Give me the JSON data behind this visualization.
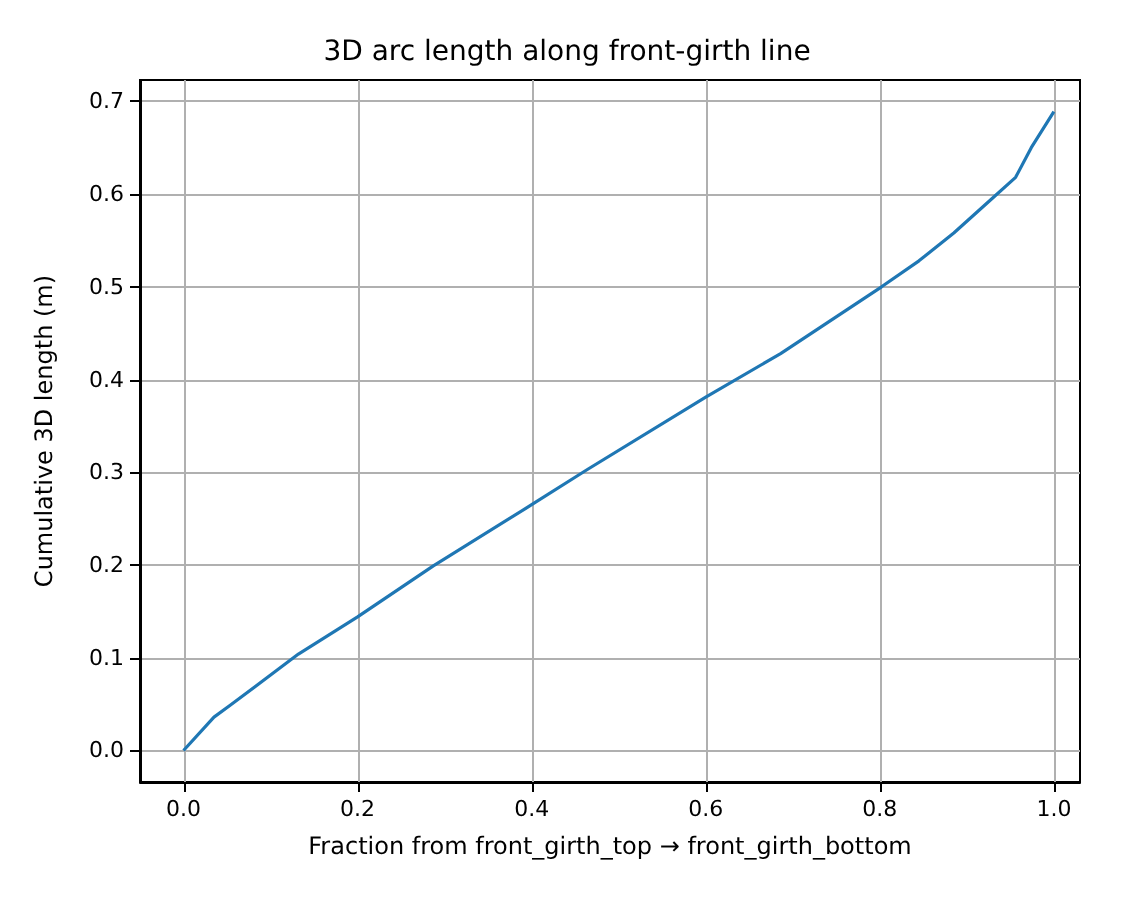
{
  "chart_data": {
    "type": "line",
    "title": "3D arc length along front-girth line",
    "xlabel": "Fraction from front_girth_top → front_girth_bottom",
    "ylabel": "Cumulative 3D length (m)",
    "series": [
      {
        "color": "#1f77b4",
        "x": [
          0,
          0.035,
          0.054,
          0.132,
          0.2,
          0.287,
          0.4,
          0.464,
          0.6,
          0.686,
          0.802,
          0.845,
          0.885,
          0.93,
          0.956,
          0.974,
          1.0
        ],
        "values": [
          0,
          0.036,
          0.049,
          0.104,
          0.144,
          0.199,
          0.265,
          0.303,
          0.381,
          0.428,
          0.5,
          0.528,
          0.558,
          0.596,
          0.618,
          0.65,
          0.689
        ]
      }
    ],
    "xlim": [
      -0.05,
      1.03
    ],
    "ylim": [
      -0.034,
      0.723
    ],
    "xticks": [
      {
        "value": 0,
        "label": "0.0"
      },
      0.2,
      0.4,
      0.6,
      0.8,
      {
        "value": 1,
        "label": "1.0"
      }
    ],
    "yticks": [
      {
        "value": 0,
        "label": "0.0"
      },
      0.1,
      0.2,
      0.3,
      0.4,
      0.5,
      0.6,
      0.7
    ],
    "grid": true,
    "marker": "none",
    "line_style": "solid"
  }
}
